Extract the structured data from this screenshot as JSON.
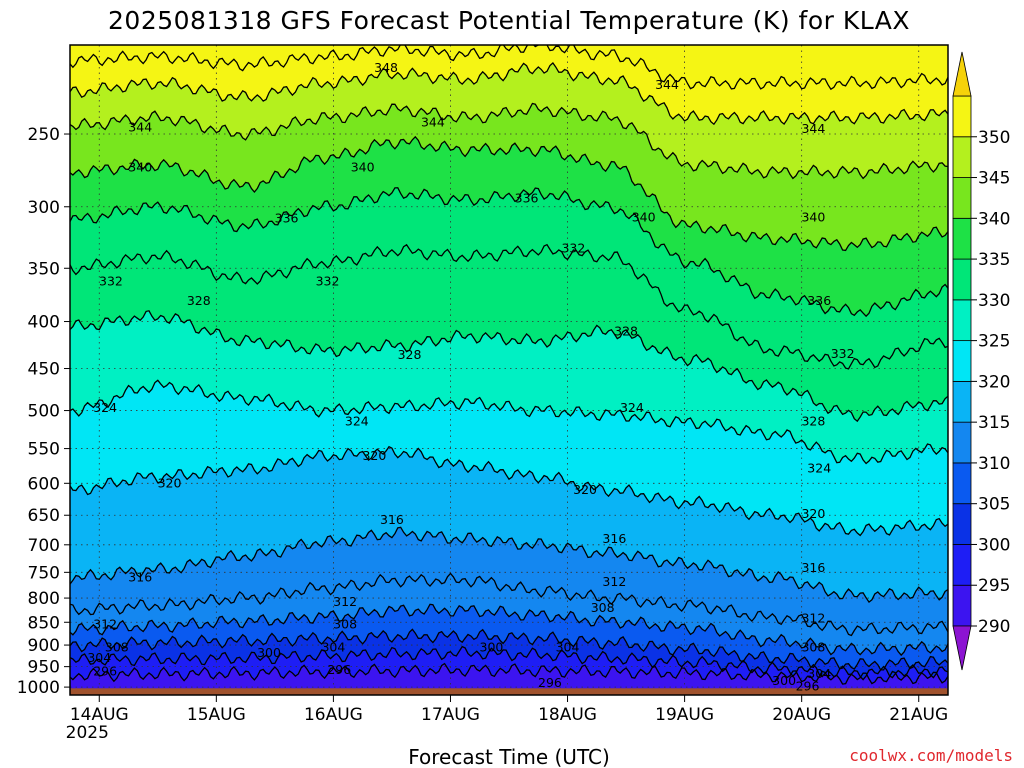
{
  "chart_data": {
    "type": "heatmap",
    "title": "2025081318 GFS Forecast Potential Temperature (K) for KLAX",
    "xlabel": "Forecast Time (UTC)",
    "ylabel": "",
    "credit": "coolwx.com/models",
    "x_ticks": [
      {
        "label": "14AUG",
        "sub": "2025",
        "day": 0.25
      },
      {
        "label": "15AUG",
        "sub": "",
        "day": 1.25
      },
      {
        "label": "16AUG",
        "sub": "",
        "day": 2.25
      },
      {
        "label": "17AUG",
        "sub": "",
        "day": 3.25
      },
      {
        "label": "18AUG",
        "sub": "",
        "day": 4.25
      },
      {
        "label": "19AUG",
        "sub": "",
        "day": 5.25
      },
      {
        "label": "20AUG",
        "sub": "",
        "day": 6.25
      },
      {
        "label": "21AUG",
        "sub": "",
        "day": 7.25
      }
    ],
    "x_range_days": [
      0,
      7.5
    ],
    "y_axis": {
      "scale": "log",
      "unit": "hPa",
      "inverted": true,
      "range": [
        1020,
        200
      ]
    },
    "y_ticks": [
      250,
      300,
      350,
      400,
      450,
      500,
      550,
      600,
      650,
      700,
      750,
      800,
      850,
      900,
      950,
      1000
    ],
    "grid": true,
    "colorbar": {
      "levels": [
        285,
        290,
        295,
        300,
        305,
        310,
        315,
        320,
        325,
        330,
        335,
        340,
        345,
        350,
        355
      ],
      "tick_labels": [
        "290",
        "295",
        "300",
        "305",
        "310",
        "315",
        "320",
        "325",
        "330",
        "335",
        "340",
        "345",
        "350"
      ],
      "colors": [
        "#8c14d2",
        "#3c14f0",
        "#1e1ef5",
        "#0a32e6",
        "#0a5af0",
        "#1487f0",
        "#0ab4f5",
        "#00e6f5",
        "#00f0c3",
        "#00e678",
        "#1ee146",
        "#78e61e",
        "#b4f01e",
        "#f5f514",
        "#f5d20a"
      ]
    },
    "ground_color": "#a0522d",
    "isentropes": [
      {
        "theta": 296,
        "p": [
          970,
          968,
          966,
          962,
          960,
          958,
          960,
          962,
          966,
          972,
          978,
          975
        ]
      },
      {
        "theta": 300,
        "p": [
          935,
          932,
          930,
          925,
          920,
          918,
          922,
          930,
          940,
          955,
          965,
          960
        ]
      },
      {
        "theta": 304,
        "p": [
          900,
          895,
          890,
          885,
          880,
          880,
          885,
          895,
          910,
          930,
          945,
          940
        ]
      },
      {
        "theta": 308,
        "p": [
          865,
          858,
          848,
          838,
          825,
          825,
          835,
          848,
          862,
          890,
          910,
          905
        ]
      },
      {
        "theta": 312,
        "p": [
          825,
          815,
          800,
          780,
          765,
          765,
          785,
          800,
          815,
          840,
          865,
          860
        ]
      },
      {
        "theta": 316,
        "p": [
          760,
          745,
          720,
          695,
          680,
          690,
          700,
          715,
          735,
          760,
          795,
          790
        ]
      },
      {
        "theta": 320,
        "p": [
          610,
          590,
          580,
          560,
          555,
          575,
          590,
          610,
          630,
          650,
          675,
          665
        ]
      },
      {
        "theta": 324,
        "p": [
          500,
          470,
          485,
          500,
          495,
          490,
          500,
          505,
          515,
          530,
          565,
          550
        ]
      },
      {
        "theta": 328,
        "p": [
          405,
          395,
          420,
          430,
          425,
          415,
          420,
          410,
          440,
          470,
          505,
          490
        ]
      },
      {
        "theta": 332,
        "p": [
          350,
          340,
          360,
          345,
          335,
          340,
          335,
          340,
          390,
          430,
          445,
          420
        ]
      },
      {
        "theta": 336,
        "p": [
          310,
          300,
          315,
          300,
          290,
          295,
          290,
          300,
          345,
          375,
          390,
          370
        ]
      },
      {
        "theta": 340,
        "p": [
          275,
          270,
          285,
          265,
          255,
          260,
          260,
          270,
          315,
          325,
          330,
          320
        ]
      },
      {
        "theta": 344,
        "p": [
          245,
          240,
          250,
          240,
          235,
          240,
          235,
          240,
          270,
          275,
          275,
          270
        ]
      },
      {
        "theta": 348,
        "p": [
          225,
          220,
          228,
          220,
          215,
          218,
          212,
          218,
          240,
          240,
          240,
          238
        ]
      },
      {
        "theta": 352,
        "p": [
          208,
          206,
          210,
          206,
          202,
          205,
          200,
          205,
          220,
          220,
          220,
          218
        ]
      }
    ],
    "isentrope_days": [
      0.0,
      0.75,
      1.5,
      2.2,
      2.8,
      3.4,
      4.0,
      4.6,
      5.3,
      6.0,
      6.7,
      7.5
    ],
    "contour_labels": [
      {
        "text": "348",
        "day": 2.7,
        "p": 212
      },
      {
        "text": "344",
        "day": 0.6,
        "p": 246
      },
      {
        "text": "344",
        "day": 3.1,
        "p": 243
      },
      {
        "text": "344",
        "day": 5.1,
        "p": 221
      },
      {
        "text": "344",
        "day": 6.35,
        "p": 247
      },
      {
        "text": "340",
        "day": 0.6,
        "p": 272
      },
      {
        "text": "340",
        "day": 2.5,
        "p": 272
      },
      {
        "text": "340",
        "day": 4.9,
        "p": 308
      },
      {
        "text": "340",
        "day": 6.35,
        "p": 308
      },
      {
        "text": "336",
        "day": 1.85,
        "p": 309
      },
      {
        "text": "336",
        "day": 3.9,
        "p": 294
      },
      {
        "text": "336",
        "day": 6.4,
        "p": 380
      },
      {
        "text": "332",
        "day": 0.35,
        "p": 362
      },
      {
        "text": "332",
        "day": 2.2,
        "p": 362
      },
      {
        "text": "332",
        "day": 4.3,
        "p": 333
      },
      {
        "text": "332",
        "day": 6.6,
        "p": 434
      },
      {
        "text": "328",
        "day": 1.1,
        "p": 380
      },
      {
        "text": "328",
        "day": 2.9,
        "p": 435
      },
      {
        "text": "328",
        "day": 4.75,
        "p": 410
      },
      {
        "text": "328",
        "day": 6.35,
        "p": 514
      },
      {
        "text": "324",
        "day": 0.3,
        "p": 497
      },
      {
        "text": "324",
        "day": 2.45,
        "p": 514
      },
      {
        "text": "324",
        "day": 4.8,
        "p": 497
      },
      {
        "text": "324",
        "day": 6.4,
        "p": 578
      },
      {
        "text": "320",
        "day": 0.85,
        "p": 600
      },
      {
        "text": "320",
        "day": 2.6,
        "p": 560
      },
      {
        "text": "320",
        "day": 4.4,
        "p": 610
      },
      {
        "text": "320",
        "day": 6.35,
        "p": 648
      },
      {
        "text": "316",
        "day": 0.6,
        "p": 760
      },
      {
        "text": "316",
        "day": 2.75,
        "p": 658
      },
      {
        "text": "316",
        "day": 4.65,
        "p": 690
      },
      {
        "text": "316",
        "day": 6.35,
        "p": 742
      },
      {
        "text": "312",
        "day": 0.3,
        "p": 855
      },
      {
        "text": "312",
        "day": 2.35,
        "p": 808
      },
      {
        "text": "312",
        "day": 4.65,
        "p": 768
      },
      {
        "text": "312",
        "day": 6.35,
        "p": 842
      },
      {
        "text": "308",
        "day": 0.4,
        "p": 906
      },
      {
        "text": "308",
        "day": 2.35,
        "p": 855
      },
      {
        "text": "308",
        "day": 4.55,
        "p": 820
      },
      {
        "text": "308",
        "day": 6.35,
        "p": 906
      },
      {
        "text": "304",
        "day": 0.25,
        "p": 930
      },
      {
        "text": "304",
        "day": 2.25,
        "p": 906
      },
      {
        "text": "304",
        "day": 4.25,
        "p": 906
      },
      {
        "text": "304",
        "day": 6.4,
        "p": 968
      },
      {
        "text": "300",
        "day": 1.7,
        "p": 918
      },
      {
        "text": "300",
        "day": 3.6,
        "p": 906
      },
      {
        "text": "300",
        "day": 6.1,
        "p": 985
      },
      {
        "text": "296",
        "day": 0.3,
        "p": 962
      },
      {
        "text": "296",
        "day": 2.3,
        "p": 958
      },
      {
        "text": "296",
        "day": 4.1,
        "p": 990
      },
      {
        "text": "296",
        "day": 6.3,
        "p": 998
      }
    ]
  }
}
